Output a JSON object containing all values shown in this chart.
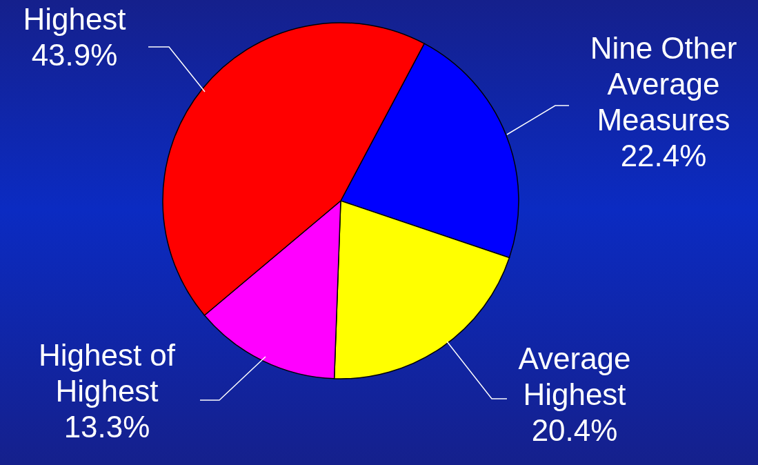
{
  "chart_data": {
    "type": "pie",
    "categories": [
      "Nine Other Average Measures",
      "Average Highest",
      "Highest of Highest",
      "Highest"
    ],
    "values": [
      22.4,
      20.4,
      13.3,
      43.9
    ],
    "value_labels": [
      "22.4%",
      "20.4%",
      "13.3%",
      "43.9%"
    ],
    "colors": [
      "#0000ff",
      "#ffff00",
      "#ff00ff",
      "#ff0000"
    ]
  }
}
